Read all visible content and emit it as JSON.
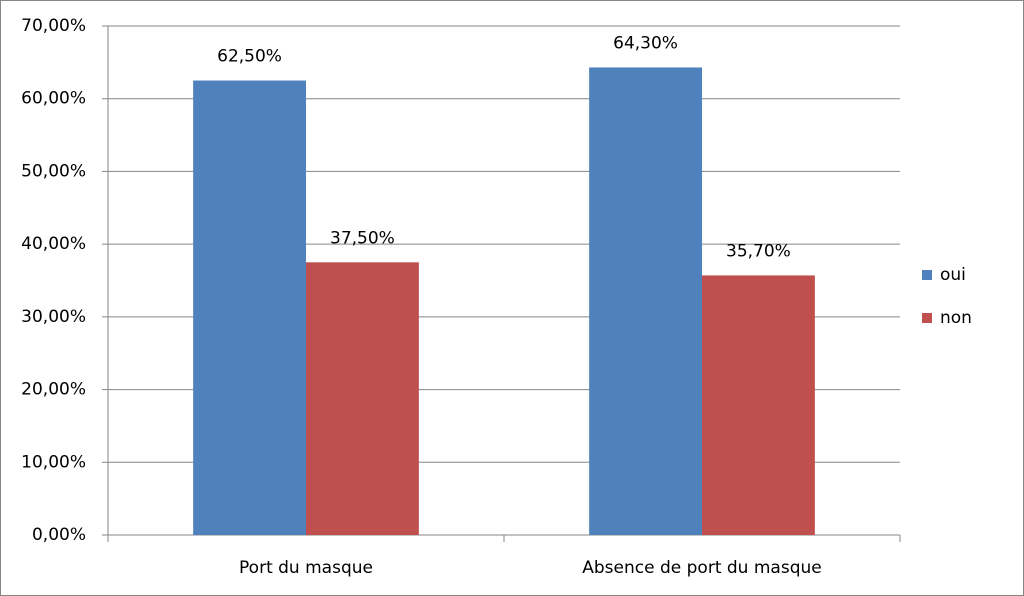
{
  "chart_data": {
    "type": "bar",
    "categories": [
      "Port du masque",
      "Absence de port du masque"
    ],
    "series": [
      {
        "name": "oui",
        "color": "#4f81bd",
        "values": [
          62.5,
          64.3
        ],
        "value_labels": [
          "62,50%",
          "64,30%"
        ]
      },
      {
        "name": "non",
        "color": "#c0504d",
        "values": [
          37.5,
          35.7
        ],
        "value_labels": [
          "37,50%",
          "35,70%"
        ]
      }
    ],
    "ylim": [
      0,
      70
    ],
    "yticks": [
      {
        "value": 0,
        "label": "0,00%"
      },
      {
        "value": 10,
        "label": "10,00%"
      },
      {
        "value": 20,
        "label": "20,00%"
      },
      {
        "value": 30,
        "label": "30,00%"
      },
      {
        "value": 40,
        "label": "40,00%"
      },
      {
        "value": 50,
        "label": "50,00%"
      },
      {
        "value": 60,
        "label": "60,00%"
      },
      {
        "value": 70,
        "label": "70,00%"
      }
    ],
    "grid": true,
    "legend": "right"
  }
}
